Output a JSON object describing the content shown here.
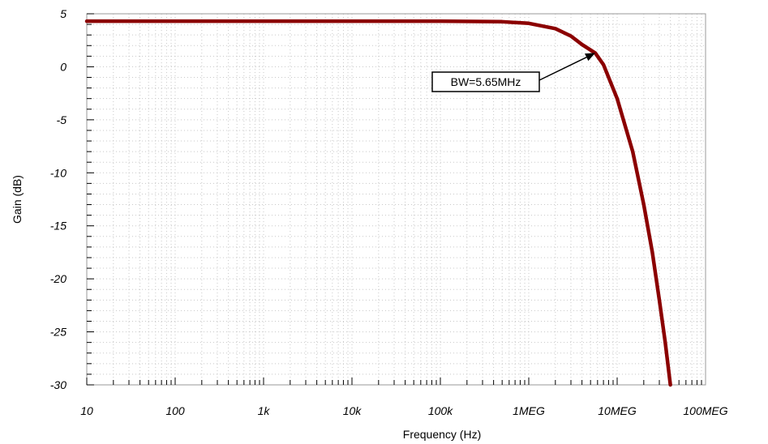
{
  "chart_data": {
    "type": "line",
    "title": "",
    "xlabel": "Frequency (Hz)",
    "ylabel": "Gain (dB)",
    "x_scale": "log",
    "xlim": [
      10,
      100000000
    ],
    "ylim": [
      -30,
      5
    ],
    "grid": true,
    "x_tick_values": [
      10,
      100,
      1000,
      10000,
      100000,
      1000000,
      10000000,
      100000000
    ],
    "x_tick_labels": [
      "10",
      "100",
      "1k",
      "10k",
      "100k",
      "1MEG",
      "10MEG",
      "100MEG"
    ],
    "y_tick_values": [
      5,
      0,
      -5,
      -10,
      -15,
      -20,
      -25,
      -30
    ],
    "y_tick_labels": [
      "5",
      "0",
      "-5",
      "-10",
      "-15",
      "-20",
      "-25",
      "-30"
    ],
    "series": [
      {
        "color": "#8b0000",
        "x": [
          10,
          1000,
          100000,
          500000,
          1000000,
          2000000,
          3000000,
          4000000,
          5650000,
          7000000,
          10000000,
          15000000,
          20000000,
          25000000,
          30000000,
          35000000,
          40000000
        ],
        "y": [
          4.3,
          4.3,
          4.3,
          4.25,
          4.1,
          3.6,
          2.9,
          2.1,
          1.3,
          0.2,
          -3.0,
          -8.0,
          -13.0,
          -17.5,
          -22.0,
          -26.0,
          -30.0
        ]
      }
    ],
    "annotations": [
      {
        "text": "BW=5.65MHz",
        "x": 5650000,
        "y": 1.3
      }
    ]
  }
}
